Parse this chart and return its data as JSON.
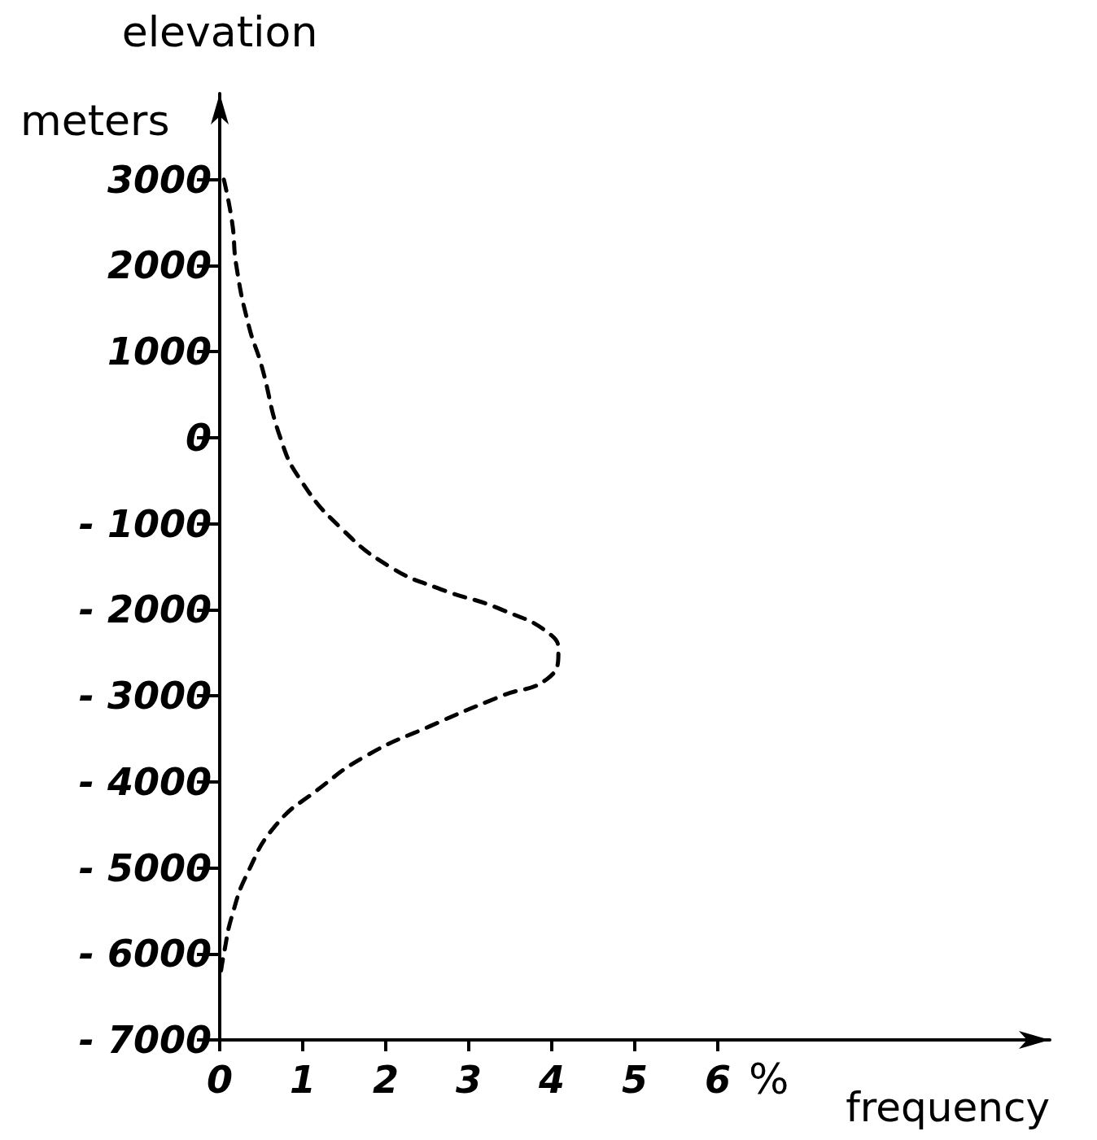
{
  "chart_data": {
    "type": "line",
    "xlabel": "frequency",
    "ylabel": "elevation",
    "annotations": [
      "meters",
      "%"
    ],
    "xlim": [
      0,
      10
    ],
    "ylim": [
      -7000,
      4000
    ],
    "xticks": [
      0,
      1,
      2,
      3,
      4,
      5,
      6
    ],
    "yticks": [
      -7000,
      -6000,
      -5000,
      -4000,
      -3000,
      -2000,
      -1000,
      0,
      1000,
      2000,
      3000
    ],
    "grid": false,
    "marker": "none",
    "line_style": "dashed",
    "series": [
      {
        "color": "#000000",
        "x": [
          0.05,
          0.15,
          0.2,
          0.35,
          0.5,
          0.73,
          0.98,
          1.46,
          2.05,
          2.63,
          3.4,
          4.0,
          4.08,
          3.95,
          3.4,
          2.54,
          1.76,
          1.17,
          0.68,
          0.34,
          0.15,
          0.05,
          0
        ],
        "values": [
          3000,
          2500,
          2000,
          1300,
          850,
          0,
          -500,
          -1050,
          -1500,
          -1750,
          -2000,
          -2300,
          -2500,
          -2800,
          -3000,
          -3350,
          -3700,
          -4100,
          -4500,
          -5050,
          -5550,
          -6000,
          -6300
        ]
      }
    ]
  }
}
